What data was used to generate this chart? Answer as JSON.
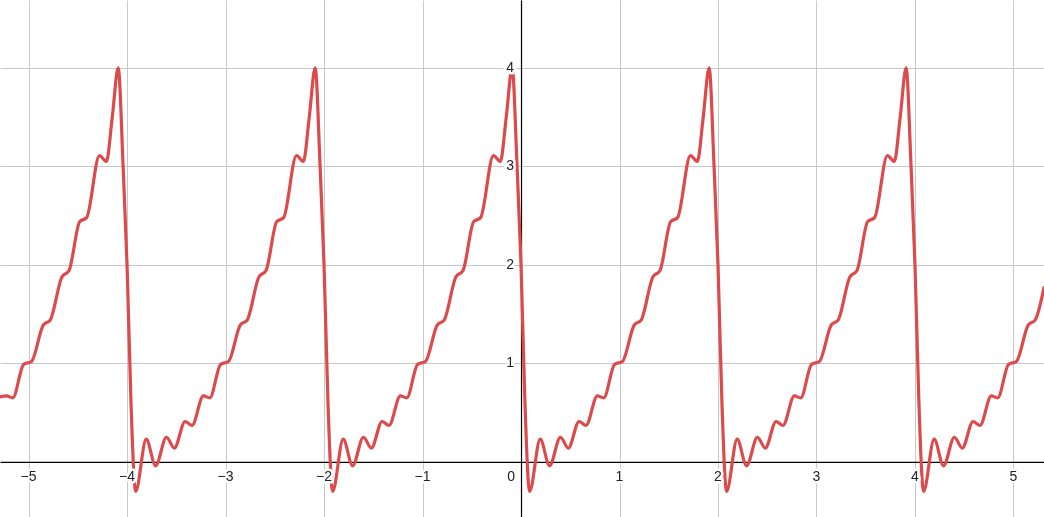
{
  "chart_data": {
    "type": "line",
    "x": [
      -5.29,
      -5.225,
      -5.16,
      -5.05,
      -4.97,
      -4.85,
      -4.78,
      -4.66,
      -4.59,
      -4.48,
      -4.41,
      -4.28,
      -4.21,
      -4.15,
      -4.09,
      -4.04,
      -4,
      -3.96,
      -3.913,
      -3.805,
      -3.71,
      -3.6,
      -3.52,
      -3.41,
      -3.34,
      -3.225,
      -3.16,
      -3.05,
      -2.97,
      -2.85,
      -2.78,
      -2.66,
      -2.59,
      -2.48,
      -2.41,
      -2.28,
      -2.21,
      -2.15,
      -2.09,
      -2.04,
      -2,
      -1.96,
      -1.913,
      -1.805,
      -1.71,
      -1.6,
      -1.52,
      -1.41,
      -1.34,
      -1.225,
      -1.16,
      -1.05,
      -0.97,
      -0.85,
      -0.78,
      -0.66,
      -0.59,
      -0.48,
      -0.41,
      -0.28,
      -0.21,
      -0.15,
      -0.09,
      -0.04,
      0,
      0.04,
      0.087,
      0.195,
      0.29,
      0.4,
      0.48,
      0.59,
      0.66,
      0.775,
      0.84,
      0.95,
      1.03,
      1.15,
      1.22,
      1.34,
      1.41,
      1.52,
      1.59,
      1.72,
      1.79,
      1.85,
      1.91,
      1.96,
      2,
      2.04,
      2.087,
      2.195,
      2.29,
      2.4,
      2.48,
      2.59,
      2.66,
      2.775,
      2.84,
      2.95,
      3.03,
      3.15,
      3.22,
      3.34,
      3.41,
      3.52,
      3.59,
      3.72,
      3.79,
      3.85,
      3.91,
      3.96,
      4,
      4.04,
      4.087,
      4.195,
      4.29,
      4.4,
      4.48,
      4.59,
      4.66,
      4.775,
      4.84,
      4.95,
      5.03,
      5.15,
      5.22,
      5.31
    ],
    "series": [
      {
        "color": "#dc4a4c",
        "values": [
          0.66,
          0.67,
          0.65,
          0.99,
          1.02,
          1.39,
          1.44,
          1.88,
          1.94,
          2.44,
          2.48,
          3.11,
          3.05,
          3.5,
          4.0,
          3.0,
          2.0,
          0.6,
          -0.3,
          0.23,
          -0.04,
          0.25,
          0.14,
          0.41,
          0.37,
          0.67,
          0.65,
          0.99,
          1.02,
          1.39,
          1.44,
          1.88,
          1.94,
          2.44,
          2.48,
          3.11,
          3.05,
          3.5,
          4.0,
          3.0,
          2.0,
          0.6,
          -0.3,
          0.23,
          -0.04,
          0.25,
          0.14,
          0.41,
          0.37,
          0.67,
          0.65,
          0.99,
          1.02,
          1.39,
          1.44,
          1.88,
          1.94,
          2.44,
          2.48,
          3.11,
          3.05,
          3.5,
          4.0,
          3.0,
          2.0,
          0.6,
          -0.3,
          0.23,
          -0.04,
          0.25,
          0.14,
          0.41,
          0.37,
          0.67,
          0.65,
          0.99,
          1.02,
          1.39,
          1.44,
          1.88,
          1.94,
          2.44,
          2.48,
          3.11,
          3.05,
          3.5,
          4.0,
          3.0,
          2.0,
          0.6,
          -0.3,
          0.23,
          -0.04,
          0.25,
          0.14,
          0.41,
          0.37,
          0.67,
          0.65,
          0.99,
          1.02,
          1.39,
          1.44,
          1.88,
          1.94,
          2.44,
          2.48,
          3.11,
          3.05,
          3.5,
          4.0,
          3.0,
          2.0,
          0.6,
          -0.3,
          0.23,
          -0.04,
          0.25,
          0.14,
          0.41,
          0.37,
          0.67,
          0.65,
          0.99,
          1.02,
          1.39,
          1.44,
          1.77
        ]
      }
    ],
    "xlim": [
      -5.29,
      5.31
    ],
    "ylim": [
      -0.56,
      4.69
    ],
    "xticks": [
      -5,
      -4,
      -3,
      -2,
      -1,
      0,
      1,
      2,
      3,
      4,
      5
    ],
    "yticks": [
      1,
      2,
      3,
      4
    ],
    "grid": true,
    "marker": "none",
    "line_style": "solid"
  }
}
